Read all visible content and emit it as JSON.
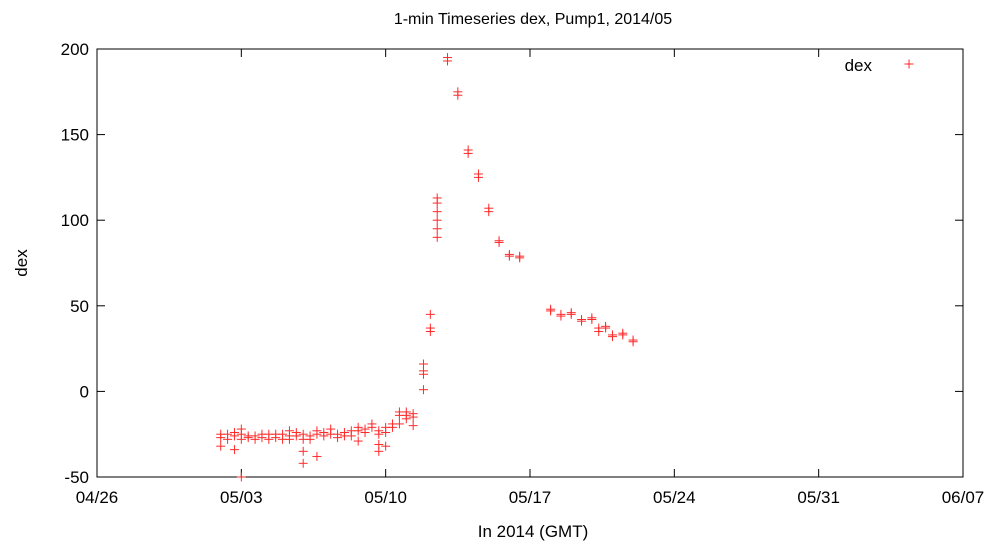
{
  "chart_data": {
    "type": "scatter",
    "title": "1-min Timeseries dex, Pump1, 2014/05",
    "xlabel": "In 2014 (GMT)",
    "ylabel": "dex",
    "x_ticks": [
      "04/26",
      "05/03",
      "05/10",
      "05/17",
      "05/24",
      "05/31",
      "06/07"
    ],
    "x_range": [
      "2014-04-26",
      "2014-06-07"
    ],
    "ylim": [
      -50,
      200
    ],
    "y_ticks": [
      -50,
      0,
      50,
      100,
      150,
      200
    ],
    "grid": false,
    "legend_position": "top-right",
    "marker": "plus",
    "color": "#ff2a2a",
    "series": [
      {
        "name": "dex",
        "points": [
          {
            "x": "2014-05-02 00:00",
            "y": -25
          },
          {
            "x": "2014-05-02 00:00",
            "y": -27
          },
          {
            "x": "2014-05-02 00:00",
            "y": -32
          },
          {
            "x": "2014-05-02 08:00",
            "y": -25
          },
          {
            "x": "2014-05-02 08:00",
            "y": -28
          },
          {
            "x": "2014-05-02 16:00",
            "y": -24
          },
          {
            "x": "2014-05-02 16:00",
            "y": -26
          },
          {
            "x": "2014-05-02 16:00",
            "y": -34
          },
          {
            "x": "2014-05-03 00:00",
            "y": -22
          },
          {
            "x": "2014-05-03 00:00",
            "y": -25
          },
          {
            "x": "2014-05-03 00:00",
            "y": -28
          },
          {
            "x": "2014-05-03 00:00",
            "y": -50
          },
          {
            "x": "2014-05-03 08:00",
            "y": -26
          },
          {
            "x": "2014-05-03 08:00",
            "y": -27
          },
          {
            "x": "2014-05-03 16:00",
            "y": -26
          },
          {
            "x": "2014-05-03 16:00",
            "y": -28
          },
          {
            "x": "2014-05-04 00:00",
            "y": -25
          },
          {
            "x": "2014-05-04 00:00",
            "y": -27
          },
          {
            "x": "2014-05-04 08:00",
            "y": -25
          },
          {
            "x": "2014-05-04 08:00",
            "y": -28
          },
          {
            "x": "2014-05-04 16:00",
            "y": -25
          },
          {
            "x": "2014-05-04 16:00",
            "y": -27
          },
          {
            "x": "2014-05-05 00:00",
            "y": -25
          },
          {
            "x": "2014-05-05 00:00",
            "y": -28
          },
          {
            "x": "2014-05-05 08:00",
            "y": -23
          },
          {
            "x": "2014-05-05 08:00",
            "y": -26
          },
          {
            "x": "2014-05-05 08:00",
            "y": -28
          },
          {
            "x": "2014-05-05 16:00",
            "y": -24
          },
          {
            "x": "2014-05-05 16:00",
            "y": -26
          },
          {
            "x": "2014-05-06 00:00",
            "y": -25
          },
          {
            "x": "2014-05-06 00:00",
            "y": -28
          },
          {
            "x": "2014-05-06 00:00",
            "y": -35
          },
          {
            "x": "2014-05-06 00:00",
            "y": -42
          },
          {
            "x": "2014-05-06 08:00",
            "y": -26
          },
          {
            "x": "2014-05-06 08:00",
            "y": -28
          },
          {
            "x": "2014-05-06 16:00",
            "y": -23
          },
          {
            "x": "2014-05-06 16:00",
            "y": -25
          },
          {
            "x": "2014-05-06 16:00",
            "y": -38
          },
          {
            "x": "2014-05-07 00:00",
            "y": -24
          },
          {
            "x": "2014-05-07 00:00",
            "y": -26
          },
          {
            "x": "2014-05-07 08:00",
            "y": -22
          },
          {
            "x": "2014-05-07 08:00",
            "y": -25
          },
          {
            "x": "2014-05-07 16:00",
            "y": -25
          },
          {
            "x": "2014-05-07 16:00",
            "y": -27
          },
          {
            "x": "2014-05-08 00:00",
            "y": -24
          },
          {
            "x": "2014-05-08 00:00",
            "y": -26
          },
          {
            "x": "2014-05-08 08:00",
            "y": -23
          },
          {
            "x": "2014-05-08 08:00",
            "y": -26
          },
          {
            "x": "2014-05-08 16:00",
            "y": -21
          },
          {
            "x": "2014-05-08 16:00",
            "y": -23
          },
          {
            "x": "2014-05-08 16:00",
            "y": -29
          },
          {
            "x": "2014-05-09 00:00",
            "y": -22
          },
          {
            "x": "2014-05-09 00:00",
            "y": -24
          },
          {
            "x": "2014-05-09 08:00",
            "y": -19
          },
          {
            "x": "2014-05-09 08:00",
            "y": -21
          },
          {
            "x": "2014-05-09 16:00",
            "y": -23
          },
          {
            "x": "2014-05-09 16:00",
            "y": -25
          },
          {
            "x": "2014-05-09 16:00",
            "y": -31
          },
          {
            "x": "2014-05-09 16:00",
            "y": -35
          },
          {
            "x": "2014-05-10 00:00",
            "y": -21
          },
          {
            "x": "2014-05-10 00:00",
            "y": -24
          },
          {
            "x": "2014-05-10 00:00",
            "y": -32
          },
          {
            "x": "2014-05-10 08:00",
            "y": -19
          },
          {
            "x": "2014-05-10 08:00",
            "y": -21
          },
          {
            "x": "2014-05-10 16:00",
            "y": -12
          },
          {
            "x": "2014-05-10 16:00",
            "y": -14
          },
          {
            "x": "2014-05-10 16:00",
            "y": -19
          },
          {
            "x": "2014-05-11 00:00",
            "y": -12
          },
          {
            "x": "2014-05-11 00:00",
            "y": -14
          },
          {
            "x": "2014-05-11 00:00",
            "y": -16
          },
          {
            "x": "2014-05-11 08:00",
            "y": -13
          },
          {
            "x": "2014-05-11 08:00",
            "y": -15
          },
          {
            "x": "2014-05-11 08:00",
            "y": -20
          },
          {
            "x": "2014-05-11 20:00",
            "y": 1
          },
          {
            "x": "2014-05-11 20:00",
            "y": 10
          },
          {
            "x": "2014-05-11 20:00",
            "y": 12
          },
          {
            "x": "2014-05-11 20:00",
            "y": 16
          },
          {
            "x": "2014-05-12 04:00",
            "y": 35
          },
          {
            "x": "2014-05-12 04:00",
            "y": 37
          },
          {
            "x": "2014-05-12 04:00",
            "y": 45
          },
          {
            "x": "2014-05-12 12:00",
            "y": 90
          },
          {
            "x": "2014-05-12 12:00",
            "y": 95
          },
          {
            "x": "2014-05-12 12:00",
            "y": 100
          },
          {
            "x": "2014-05-12 12:00",
            "y": 105
          },
          {
            "x": "2014-05-12 12:00",
            "y": 110
          },
          {
            "x": "2014-05-12 12:00",
            "y": 113
          },
          {
            "x": "2014-05-13 00:00",
            "y": 193
          },
          {
            "x": "2014-05-13 00:00",
            "y": 195
          },
          {
            "x": "2014-05-13 12:00",
            "y": 173
          },
          {
            "x": "2014-05-13 12:00",
            "y": 175
          },
          {
            "x": "2014-05-14 00:00",
            "y": 139
          },
          {
            "x": "2014-05-14 00:00",
            "y": 141
          },
          {
            "x": "2014-05-14 12:00",
            "y": 125
          },
          {
            "x": "2014-05-14 12:00",
            "y": 127
          },
          {
            "x": "2014-05-15 00:00",
            "y": 105
          },
          {
            "x": "2014-05-15 00:00",
            "y": 107
          },
          {
            "x": "2014-05-15 12:00",
            "y": 87
          },
          {
            "x": "2014-05-15 12:00",
            "y": 88
          },
          {
            "x": "2014-05-16 00:00",
            "y": 79
          },
          {
            "x": "2014-05-16 00:00",
            "y": 80
          },
          {
            "x": "2014-05-16 12:00",
            "y": 78
          },
          {
            "x": "2014-05-16 12:00",
            "y": 79
          },
          {
            "x": "2014-05-18 00:00",
            "y": 47
          },
          {
            "x": "2014-05-18 00:00",
            "y": 48
          },
          {
            "x": "2014-05-18 12:00",
            "y": 44
          },
          {
            "x": "2014-05-18 12:00",
            "y": 45
          },
          {
            "x": "2014-05-19 00:00",
            "y": 45
          },
          {
            "x": "2014-05-19 00:00",
            "y": 46
          },
          {
            "x": "2014-05-19 12:00",
            "y": 41
          },
          {
            "x": "2014-05-19 12:00",
            "y": 42
          },
          {
            "x": "2014-05-20 00:00",
            "y": 42
          },
          {
            "x": "2014-05-20 00:00",
            "y": 43
          },
          {
            "x": "2014-05-20 08:00",
            "y": 35
          },
          {
            "x": "2014-05-20 08:00",
            "y": 37
          },
          {
            "x": "2014-05-20 16:00",
            "y": 37
          },
          {
            "x": "2014-05-20 16:00",
            "y": 38
          },
          {
            "x": "2014-05-21 00:00",
            "y": 32
          },
          {
            "x": "2014-05-21 00:00",
            "y": 33
          },
          {
            "x": "2014-05-21 12:00",
            "y": 33
          },
          {
            "x": "2014-05-21 12:00",
            "y": 34
          },
          {
            "x": "2014-05-22 00:00",
            "y": 29
          },
          {
            "x": "2014-05-22 00:00",
            "y": 30
          }
        ]
      }
    ]
  }
}
